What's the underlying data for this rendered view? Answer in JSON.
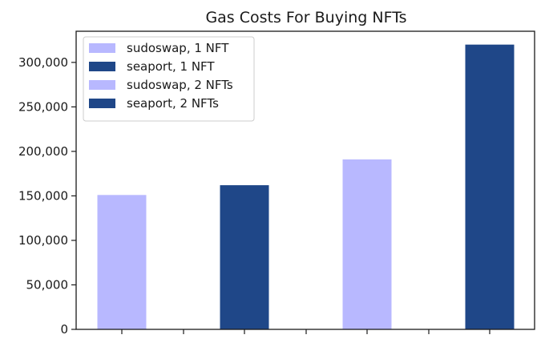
{
  "chart_data": {
    "type": "bar",
    "title": "Gas Costs For Buying NFTs",
    "xlabel": "",
    "ylabel": "",
    "ylim": [
      0,
      335000
    ],
    "yticks": [
      0,
      50000,
      100000,
      150000,
      200000,
      250000,
      300000
    ],
    "ytick_labels": [
      "0",
      "50,000",
      "100,000",
      "150,000",
      "200,000",
      "250,000",
      "300,000"
    ],
    "grid": false,
    "legend_position": "top-left",
    "bars": [
      {
        "name": "sudoswap, 1 NFT",
        "value": 151000,
        "color": "#b8b8ff"
      },
      {
        "name": "seaport, 1 NFT",
        "value": 162000,
        "color": "#1f4788"
      },
      {
        "name": "sudoswap, 2 NFTs",
        "value": 191000,
        "color": "#b8b8ff"
      },
      {
        "name": "seaport, 2 NFTs",
        "value": 320000,
        "color": "#1f4788"
      }
    ]
  }
}
